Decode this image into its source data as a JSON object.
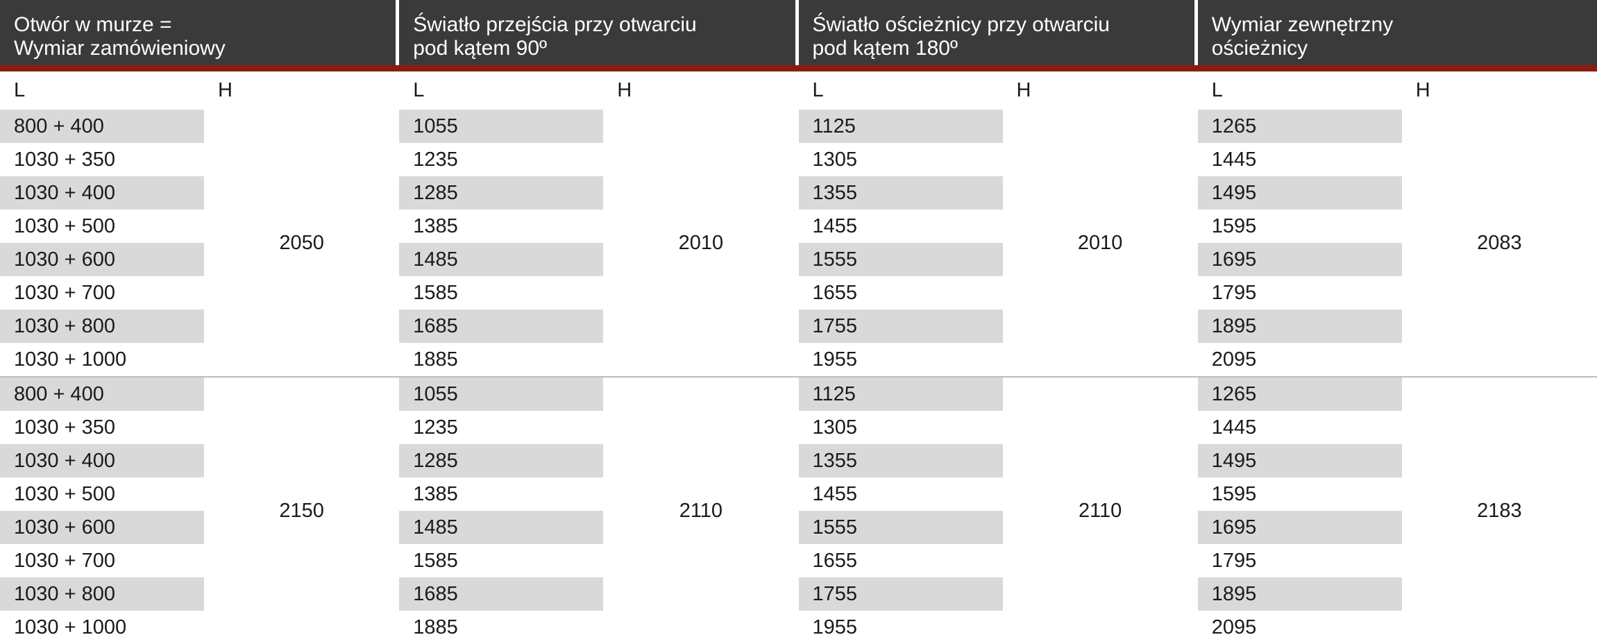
{
  "colors": {
    "header_bg": "#3a3a3a",
    "header_text": "#ffffff",
    "divider_red": "#8d1b10",
    "row_shade": "#d9d9d9",
    "text_dark": "#1a1a1a",
    "border_gray": "#9b9b9b"
  },
  "table": {
    "groups": [
      {
        "line1": "Otwór w murze =",
        "line2": "Wymiar zamówieniowy"
      },
      {
        "line1": "Światło przejścia przy otwarciu",
        "line2": "pod kątem 90º"
      },
      {
        "line1": "Światło ościeżnicy przy otwarciu",
        "line2": "pod kątem 180º"
      },
      {
        "line1": "Wymiar zewnętrzny",
        "line2": "ościeżnicy"
      }
    ],
    "sub_headers": [
      "L",
      "H"
    ],
    "blocks": [
      {
        "h_values": [
          "2050",
          "2010",
          "2010",
          "2083"
        ],
        "rows": [
          [
            "800 + 400",
            "1055",
            "1125",
            "1265"
          ],
          [
            "1030 + 350",
            "1235",
            "1305",
            "1445"
          ],
          [
            "1030 + 400",
            "1285",
            "1355",
            "1495"
          ],
          [
            "1030 + 500",
            "1385",
            "1455",
            "1595"
          ],
          [
            "1030 + 600",
            "1485",
            "1555",
            "1695"
          ],
          [
            "1030 + 700",
            "1585",
            "1655",
            "1795"
          ],
          [
            "1030 + 800",
            "1685",
            "1755",
            "1895"
          ],
          [
            "1030 + 1000",
            "1885",
            "1955",
            "2095"
          ]
        ]
      },
      {
        "h_values": [
          "2150",
          "2110",
          "2110",
          "2183"
        ],
        "rows": [
          [
            "800 + 400",
            "1055",
            "1125",
            "1265"
          ],
          [
            "1030 + 350",
            "1235",
            "1305",
            "1445"
          ],
          [
            "1030 + 400",
            "1285",
            "1355",
            "1495"
          ],
          [
            "1030 + 500",
            "1385",
            "1455",
            "1595"
          ],
          [
            "1030 + 600",
            "1485",
            "1555",
            "1695"
          ],
          [
            "1030 + 700",
            "1585",
            "1655",
            "1795"
          ],
          [
            "1030 + 800",
            "1685",
            "1755",
            "1895"
          ],
          [
            "1030 + 1000",
            "1885",
            "1955",
            "2095"
          ]
        ]
      }
    ]
  }
}
